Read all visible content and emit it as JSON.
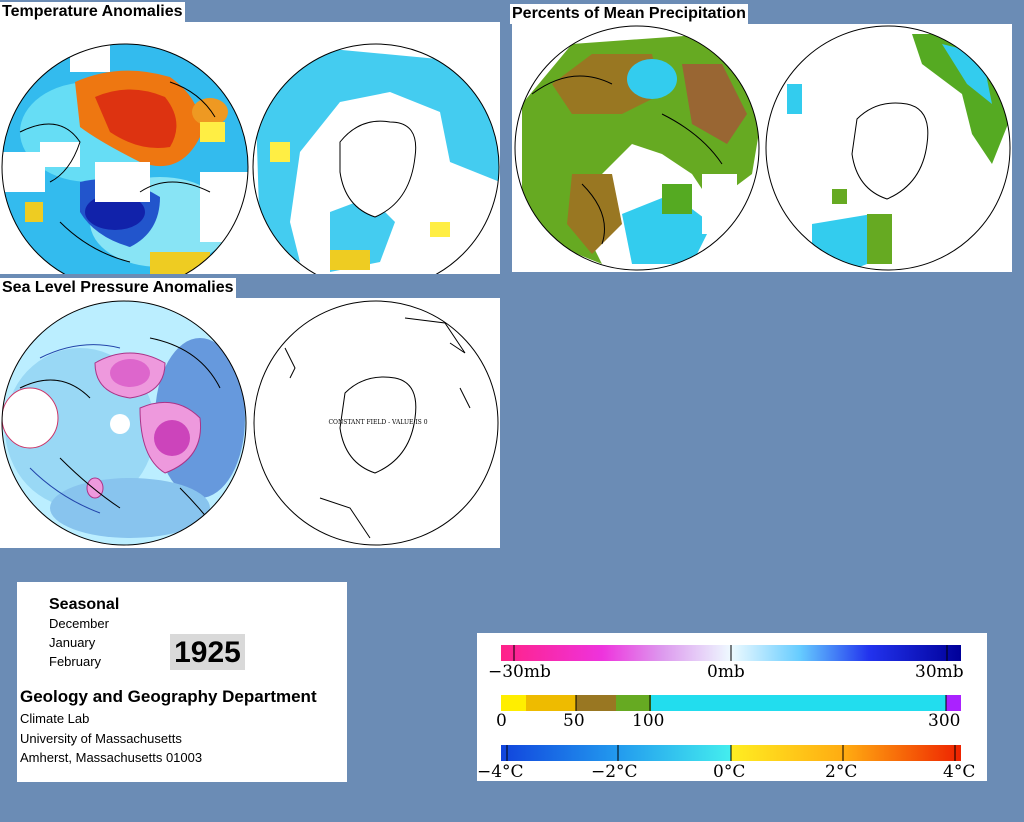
{
  "panels": {
    "temperature": {
      "title": "Temperature Anomalies"
    },
    "precipitation": {
      "title": "Percents of Mean Precipitation"
    },
    "pressure": {
      "title": "Sea Level Pressure Anomalies",
      "right_map_note": "CONSTANT FIELD - VALUE IS 0"
    }
  },
  "info": {
    "season_label": "Seasonal",
    "months": [
      "December",
      "January",
      "February"
    ],
    "year": "1925",
    "department": "Geology and Geography Department",
    "lab": "Climate Lab",
    "university": "University of Massachusetts",
    "address": "Amherst, Massachusetts 01003"
  },
  "legend": {
    "pressure": {
      "labels": [
        "−30mb",
        "0mb",
        "30mb"
      ]
    },
    "precipitation": {
      "labels": [
        "0",
        "50",
        "100",
        "300"
      ]
    },
    "temperature": {
      "labels": [
        "−4°C",
        "−2°C",
        "0°C",
        "2°C",
        "4°C"
      ]
    }
  },
  "colors": {
    "background": "#6b8cb5",
    "warm_anomaly": "#e03a10",
    "cold_anomaly": "#1a33cc",
    "cyan": "#33ccee",
    "dry": "#996633",
    "wet_green": "#55aa22",
    "high_pressure": "#dd66cc",
    "low_pressure": "#5577dd"
  }
}
